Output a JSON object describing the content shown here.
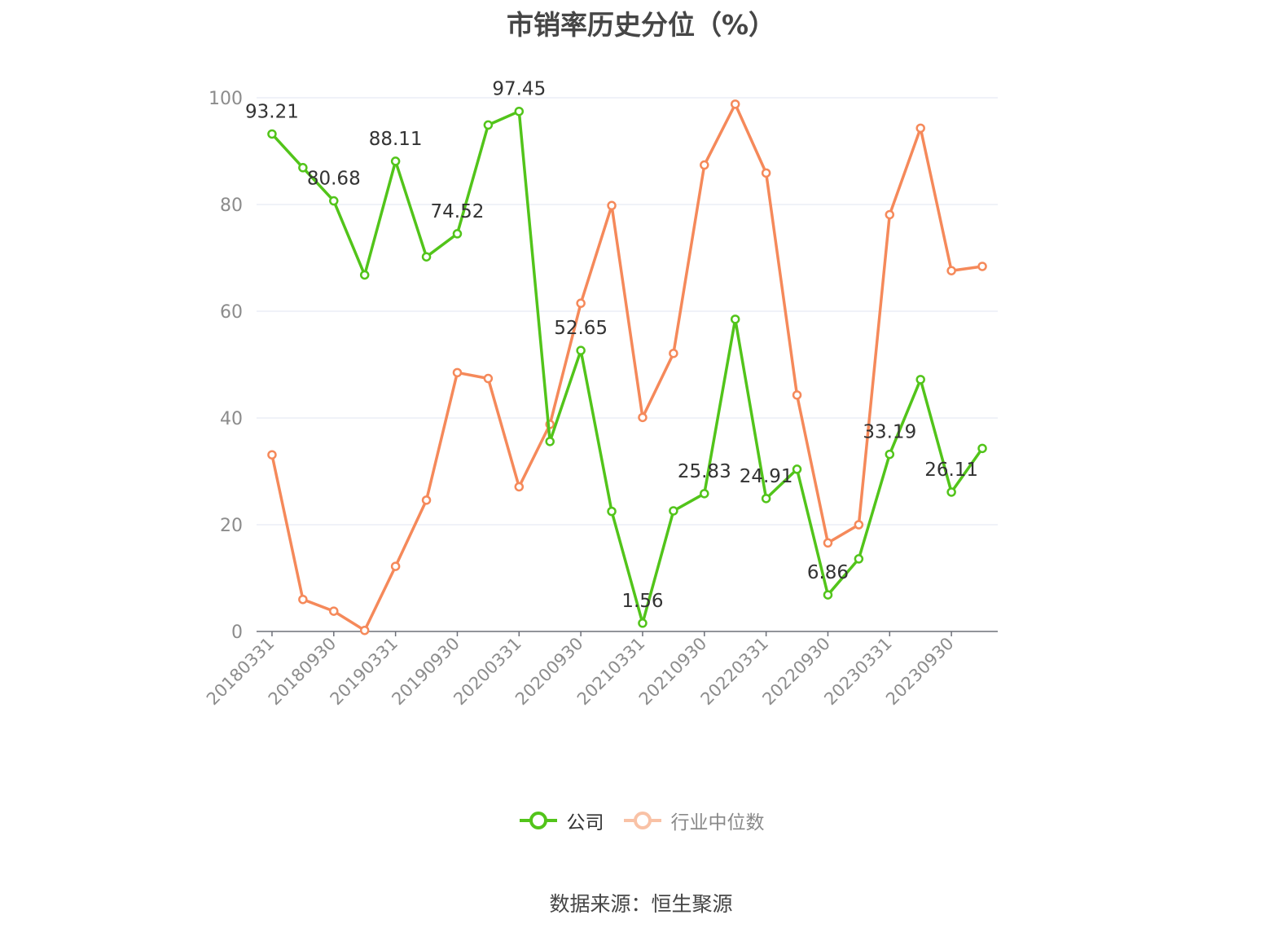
{
  "chart_data": {
    "type": "line",
    "title": "市销率历史分位（%）",
    "categories": [
      "20180331",
      "20180630",
      "20180930",
      "20181231",
      "20190331",
      "20190630",
      "20190930",
      "20191231",
      "20200331",
      "20200630",
      "20200930",
      "20201231",
      "20210331",
      "20210630",
      "20210930",
      "20211231",
      "20220331",
      "20220630",
      "20220930",
      "20221231",
      "20230331",
      "20230630",
      "20230930",
      "20231231"
    ],
    "x_tick_labels": [
      "20180331",
      "20180930",
      "20190331",
      "20190930",
      "20200331",
      "20200930",
      "20210331",
      "20210930",
      "20220331",
      "20220930",
      "20230331",
      "20230930"
    ],
    "ylim": [
      0,
      100
    ],
    "y_ticks": [
      0,
      20,
      40,
      60,
      80,
      100
    ],
    "grid": true,
    "legend_position": "bottom-center",
    "series": [
      {
        "name": "公司",
        "color": "#52c41a",
        "values": [
          93.21,
          86.9,
          80.68,
          66.8,
          88.11,
          70.2,
          74.52,
          94.9,
          97.45,
          35.6,
          52.65,
          22.5,
          1.56,
          22.6,
          25.83,
          58.5,
          24.91,
          30.4,
          6.86,
          13.6,
          33.19,
          47.2,
          26.11,
          34.3
        ],
        "labels": {
          "0": "93.21",
          "2": "80.68",
          "4": "88.11",
          "6": "74.52",
          "8": "97.45",
          "10": "52.65",
          "12": "1.56",
          "14": "25.83",
          "16": "24.91",
          "18": "6.86",
          "20": "33.19",
          "22": "26.11"
        }
      },
      {
        "name": "行业中位数",
        "color": "#f5895a",
        "values": [
          33.1,
          6.0,
          3.8,
          0.2,
          12.2,
          24.6,
          48.5,
          47.4,
          27.1,
          38.8,
          61.5,
          79.8,
          40.1,
          52.1,
          87.4,
          98.8,
          85.9,
          44.3,
          16.6,
          20.0,
          78.1,
          94.3,
          67.6,
          68.4
        ]
      }
    ]
  },
  "legend": {
    "company": "公司",
    "industry": "行业中位数"
  },
  "source": "数据来源：恒生聚源"
}
